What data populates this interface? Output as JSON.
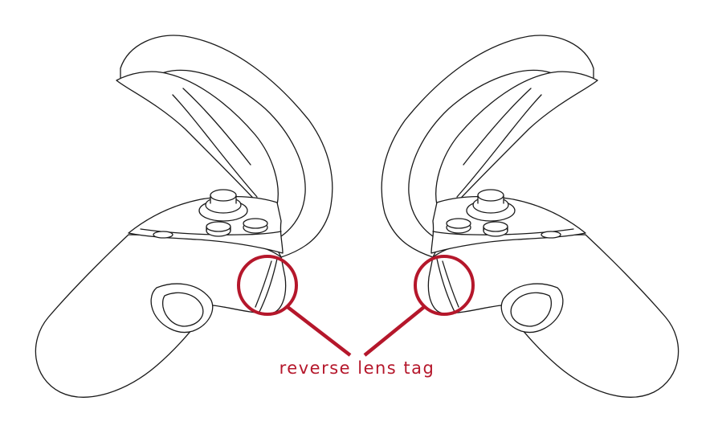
{
  "callout": {
    "label": "reverse lens tag",
    "color": "#b5172b"
  },
  "colors": {
    "line_art": "#1a1a1a",
    "background": "#ffffff"
  },
  "icons": {
    "left_controller": "vr-controller-left-icon",
    "right_controller": "vr-controller-right-icon"
  }
}
